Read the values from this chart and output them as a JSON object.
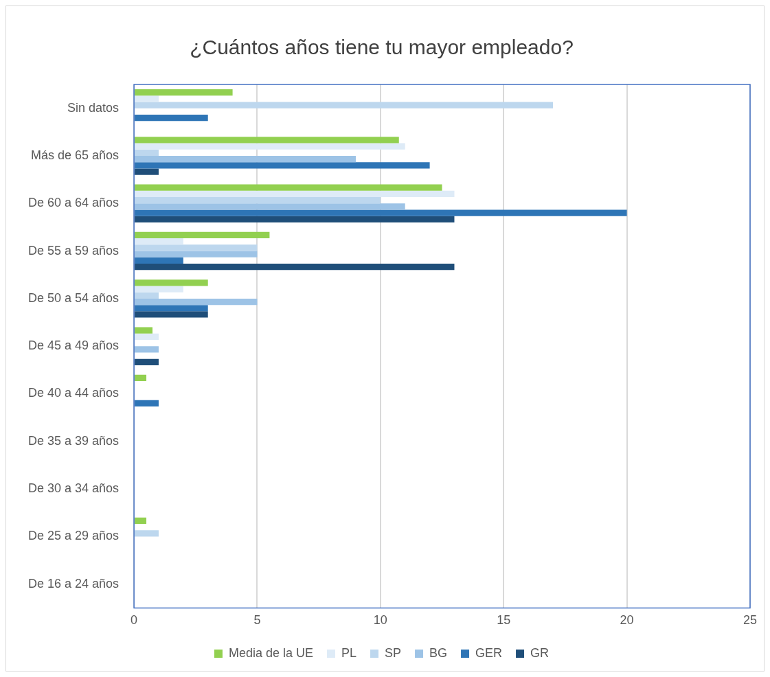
{
  "chart_data": {
    "type": "bar",
    "orientation": "horizontal",
    "title": "¿Cuántos años tiene tu mayor empleado?",
    "categories": [
      "Sin datos",
      "Más de 65 años",
      "De 60 a 64 años",
      "De 55 a 59 años",
      "De 50 a 54 años",
      "De 45 a 49 años",
      "De 40 a 44 años",
      "De 35 a 39 años",
      "De 30 a 34 años",
      "De 25 a 29 años",
      "De 16 a 24 años"
    ],
    "series": [
      {
        "name": "Media de la UE",
        "color": "#92d050",
        "values": [
          4,
          10.75,
          12.5,
          5.5,
          3,
          0.75,
          0.5,
          0,
          0,
          0.5,
          0
        ]
      },
      {
        "name": "PL",
        "color": "#deebf7",
        "values": [
          1,
          11,
          13,
          2,
          2,
          1,
          0,
          0,
          0,
          0,
          0
        ]
      },
      {
        "name": "SP",
        "color": "#bdd7ee",
        "values": [
          17,
          1,
          10,
          5,
          1,
          0,
          0,
          0,
          0,
          1,
          0
        ]
      },
      {
        "name": "BG",
        "color": "#9dc3e6",
        "values": [
          0,
          9,
          11,
          5,
          5,
          1,
          0,
          0,
          0,
          0,
          0
        ]
      },
      {
        "name": "GER",
        "color": "#2e75b6",
        "values": [
          3,
          12,
          20,
          2,
          3,
          0,
          1,
          0,
          0,
          0,
          0
        ]
      },
      {
        "name": "GR",
        "color": "#1f4e79",
        "values": [
          0,
          1,
          13,
          13,
          3,
          1,
          0,
          0,
          0,
          0,
          0
        ]
      }
    ],
    "xlim": [
      0,
      25
    ],
    "xticks": [
      0,
      5,
      10,
      15,
      20,
      25
    ],
    "grid": "x",
    "legend": "bottom"
  }
}
